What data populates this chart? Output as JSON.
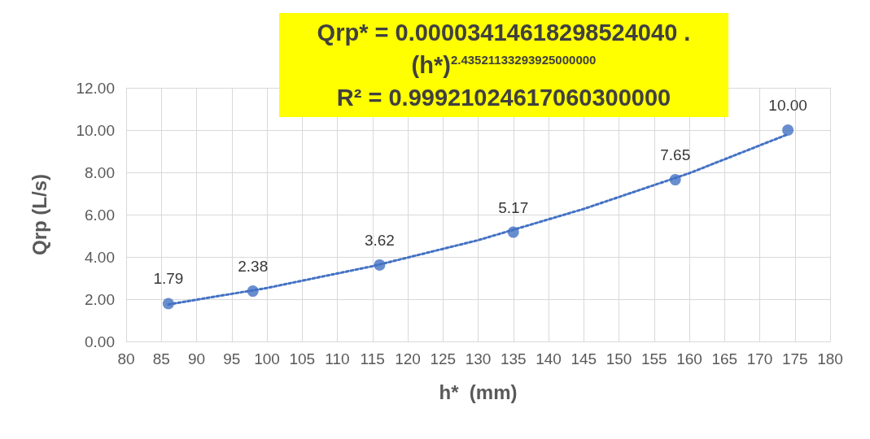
{
  "chart_data": {
    "type": "scatter",
    "xlabel": "h*  (mm)",
    "ylabel": "Qrp (L/s)",
    "annotations": [
      "Qrp* = 0.00003414618298524040 . (h*)$^{2.43521133293925000000}$",
      "R² = 0.99921024617060300000"
    ],
    "series": [
      {
        "color": "#4472c4",
        "x": [
          86,
          98,
          116,
          135,
          158,
          174
        ],
        "values": [
          1.79,
          2.38,
          3.62,
          5.17,
          7.65,
          10.0
        ],
        "value_labels": [
          "1.79",
          "2.38",
          "3.62",
          "5.17",
          "7.65",
          "10.00"
        ],
        "marker": "circle"
      },
      {
        "type": "line",
        "color": "#4472c4",
        "x": [
          86,
          100,
          115,
          130,
          145,
          160,
          174
        ],
        "values": [
          1.75,
          2.53,
          3.56,
          4.79,
          6.27,
          7.96,
          9.8
        ],
        "line_style": "dotted",
        "marker": "none"
      }
    ],
    "xlim": [
      80,
      180
    ],
    "xticks": [
      80,
      85,
      90,
      95,
      100,
      105,
      110,
      115,
      120,
      125,
      130,
      135,
      140,
      145,
      150,
      155,
      160,
      165,
      170,
      175,
      180
    ],
    "ylim": [
      0,
      12
    ],
    "yticks": [
      {
        "value": 0,
        "label": "0.00"
      },
      {
        "value": 2,
        "label": "2.00"
      },
      {
        "value": 4,
        "label": "4.00"
      },
      {
        "value": 6,
        "label": "6.00"
      },
      {
        "value": 8,
        "label": "8.00"
      },
      {
        "value": 10,
        "label": "10.00"
      },
      {
        "value": 12,
        "label": "12.00"
      }
    ],
    "grid": true,
    "legend": false
  }
}
